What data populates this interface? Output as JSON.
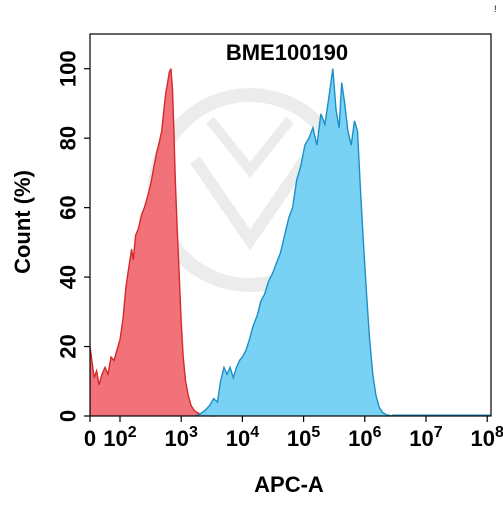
{
  "chart_data": {
    "type": "area",
    "title": "BME100190",
    "xlabel": "APC-A",
    "ylabel": "Count (%)",
    "x_scale": "biexponential",
    "ylim": [
      0,
      110
    ],
    "grid": false,
    "legend": "none",
    "corner_mark": "!",
    "y_ticks": [
      {
        "value": 0,
        "label": "0"
      },
      {
        "value": 20,
        "label": "20"
      },
      {
        "value": 40,
        "label": "40"
      },
      {
        "value": 60,
        "label": "60"
      },
      {
        "value": 80,
        "label": "80"
      },
      {
        "value": 100,
        "label": "100"
      }
    ],
    "x_ticks": [
      {
        "value": 0,
        "base": "0",
        "exp": ""
      },
      {
        "value": 100,
        "base": "10",
        "exp": "2"
      },
      {
        "value": 1000,
        "base": "10",
        "exp": "3"
      },
      {
        "value": 10000,
        "base": "10",
        "exp": "4"
      },
      {
        "value": 100000,
        "base": "10",
        "exp": "5"
      },
      {
        "value": 1000000,
        "base": "10",
        "exp": "6"
      },
      {
        "value": 10000000,
        "base": "10",
        "exp": "7"
      },
      {
        "value": 100000000,
        "base": "10",
        "exp": "8"
      }
    ],
    "series": [
      {
        "color": "#f0666e",
        "stroke": "#d42a2a",
        "points": [
          [
            0,
            20
          ],
          [
            6,
            16
          ],
          [
            14,
            11
          ],
          [
            22,
            13
          ],
          [
            30,
            9
          ],
          [
            40,
            12
          ],
          [
            50,
            14
          ],
          [
            60,
            12
          ],
          [
            70,
            17
          ],
          [
            80,
            16
          ],
          [
            90,
            19
          ],
          [
            100,
            22
          ],
          [
            112,
            28
          ],
          [
            125,
            37
          ],
          [
            140,
            43
          ],
          [
            155,
            48
          ],
          [
            165,
            45
          ],
          [
            180,
            52
          ],
          [
            200,
            54
          ],
          [
            225,
            58
          ],
          [
            250,
            60
          ],
          [
            280,
            63
          ],
          [
            320,
            67
          ],
          [
            360,
            72
          ],
          [
            400,
            76
          ],
          [
            440,
            79
          ],
          [
            480,
            82
          ],
          [
            520,
            88
          ],
          [
            560,
            93
          ],
          [
            600,
            96
          ],
          [
            640,
            99
          ],
          [
            680,
            100
          ],
          [
            720,
            94
          ],
          [
            760,
            82
          ],
          [
            800,
            68
          ],
          [
            860,
            54
          ],
          [
            930,
            40
          ],
          [
            1000,
            27
          ],
          [
            1080,
            17
          ],
          [
            1180,
            10
          ],
          [
            1300,
            6
          ],
          [
            1450,
            3
          ],
          [
            1650,
            1.5
          ],
          [
            1900,
            0.8
          ],
          [
            2300,
            0.3
          ],
          [
            2800,
            0.1
          ],
          [
            3500,
            0
          ]
        ]
      },
      {
        "color": "#6ecef2",
        "stroke": "#1a8fc8",
        "points": [
          [
            1700,
            0
          ],
          [
            2000,
            0.5
          ],
          [
            2400,
            1.5
          ],
          [
            2900,
            3
          ],
          [
            3400,
            5
          ],
          [
            3900,
            4
          ],
          [
            4400,
            10
          ],
          [
            5000,
            14
          ],
          [
            5600,
            12
          ],
          [
            6300,
            14
          ],
          [
            7100,
            11
          ],
          [
            8000,
            14
          ],
          [
            9000,
            16
          ],
          [
            10000,
            17
          ],
          [
            11500,
            19
          ],
          [
            13000,
            22
          ],
          [
            15000,
            26
          ],
          [
            17500,
            29
          ],
          [
            20000,
            33
          ],
          [
            23000,
            35
          ],
          [
            27000,
            39
          ],
          [
            31000,
            41
          ],
          [
            36000,
            44
          ],
          [
            42000,
            47
          ],
          [
            49000,
            52
          ],
          [
            57000,
            57
          ],
          [
            66000,
            60
          ],
          [
            77000,
            68
          ],
          [
            90000,
            72
          ],
          [
            105000,
            78
          ],
          [
            122000,
            80
          ],
          [
            142000,
            83
          ],
          [
            165000,
            78
          ],
          [
            192000,
            87
          ],
          [
            223000,
            84
          ],
          [
            260000,
            92
          ],
          [
            300000,
            100
          ],
          [
            340000,
            88
          ],
          [
            380000,
            83
          ],
          [
            420000,
            96
          ],
          [
            470000,
            90
          ],
          [
            530000,
            82
          ],
          [
            600000,
            78
          ],
          [
            680000,
            85
          ],
          [
            760000,
            82
          ],
          [
            850000,
            65
          ],
          [
            950000,
            50
          ],
          [
            1070000,
            35
          ],
          [
            1200000,
            22
          ],
          [
            1350000,
            12
          ],
          [
            1520000,
            6
          ],
          [
            1720000,
            2.5
          ],
          [
            1950000,
            1
          ],
          [
            2300000,
            0.3
          ],
          [
            2800000,
            0
          ]
        ]
      }
    ]
  }
}
